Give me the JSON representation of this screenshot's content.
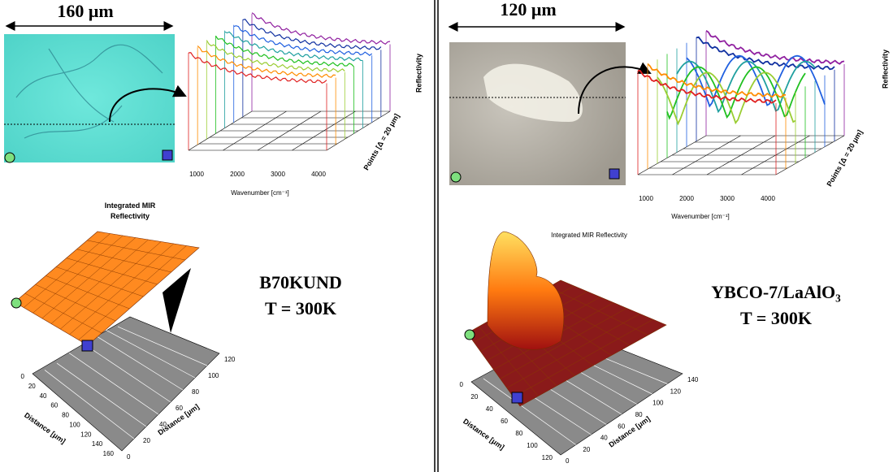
{
  "left": {
    "scale_label": "160 μm",
    "spectra": {
      "x_ticks": [
        "1000",
        "2000",
        "3000",
        "4000"
      ],
      "x_label": "Wavenumber [cm⁻¹]",
      "z_label": "Points [Δ = 20 μm]",
      "y_label": "Reflectivity"
    },
    "map": {
      "title": "Integrated MIR Reflectivity",
      "axis_a_label": "Distance [μm]",
      "axis_a_ticks": [
        "0",
        "20",
        "40",
        "60",
        "80",
        "100",
        "120",
        "140",
        "160"
      ],
      "axis_b_label": "Distance [μm]",
      "axis_b_ticks": [
        "0",
        "20",
        "40",
        "60",
        "80",
        "100",
        "120"
      ]
    },
    "sample": "B70KUND",
    "temperature": "T = 300K"
  },
  "right": {
    "scale_label": "120 μm",
    "spectra": {
      "x_ticks": [
        "1000",
        "2000",
        "3000",
        "4000"
      ],
      "x_label": "Wavenumber [cm⁻¹]",
      "z_label": "Points [Δ = 20 μm]",
      "y_label": "Reflectivity"
    },
    "map": {
      "title": "Integrated MIR Reflectivity",
      "axis_a_label": "Distance [μm]",
      "axis_a_ticks": [
        "0",
        "20",
        "40",
        "60",
        "80",
        "100",
        "120"
      ],
      "axis_b_label": "Distance [μm]",
      "axis_b_ticks": [
        "0",
        "20",
        "40",
        "60",
        "80",
        "100",
        "120",
        "140"
      ]
    },
    "sample": "YBCO-7/LaAlO₃",
    "temperature": "T = 300K"
  }
}
